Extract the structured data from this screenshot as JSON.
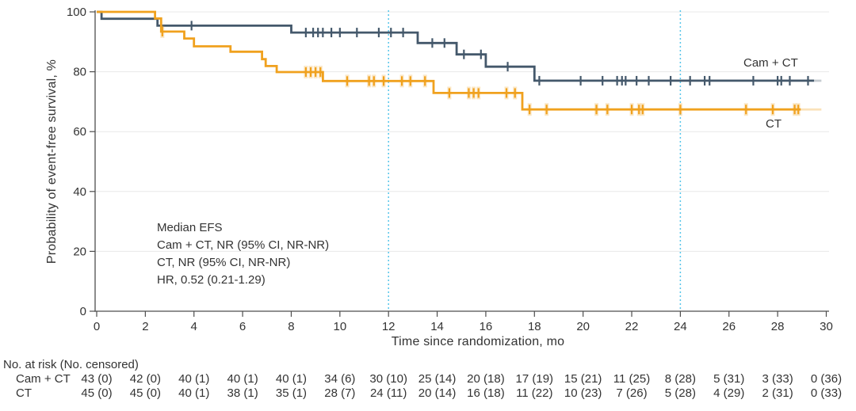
{
  "chart_data": {
    "type": "line",
    "subtype": "kaplan-meier-step",
    "title": "",
    "xlabel": "Time since randomization, mo",
    "ylabel": "Probability of event-free survival, %",
    "xlim": [
      0,
      30
    ],
    "ylim": [
      0,
      100
    ],
    "xticks": [
      0,
      2,
      4,
      6,
      8,
      10,
      12,
      14,
      16,
      18,
      20,
      22,
      24,
      26,
      28,
      30
    ],
    "yticks": [
      0,
      20,
      40,
      60,
      80,
      100
    ],
    "grid": "horizontal-light",
    "legend_position": "curve-end-labels",
    "reference_lines_x": [
      12,
      24
    ],
    "colors": {
      "axis": "#4d4d4d",
      "grid": "#e8e8e8",
      "reference": "#56c5ea",
      "text": "#333333"
    },
    "series": [
      {
        "name": "Cam + CT",
        "color": "#44586b",
        "censor_halo": false,
        "steps": [
          [
            0,
            100
          ],
          [
            0.2,
            97.7
          ],
          [
            2.5,
            95.4
          ],
          [
            8.0,
            93.1
          ],
          [
            13.2,
            89.6
          ],
          [
            14.8,
            85.8
          ],
          [
            16.0,
            81.7
          ],
          [
            18.0,
            77.0
          ]
        ],
        "end": 29.5,
        "end_faint": 29.8,
        "censors": [
          [
            3.9,
            95.4
          ],
          [
            8.6,
            93.1
          ],
          [
            8.9,
            93.1
          ],
          [
            9.1,
            93.1
          ],
          [
            9.3,
            93.1
          ],
          [
            9.65,
            93.1
          ],
          [
            10.0,
            93.1
          ],
          [
            10.7,
            93.1
          ],
          [
            11.6,
            93.1
          ],
          [
            12.1,
            93.1
          ],
          [
            12.6,
            93.1
          ],
          [
            13.8,
            89.6
          ],
          [
            14.3,
            89.6
          ],
          [
            15.1,
            85.8
          ],
          [
            15.8,
            85.8
          ],
          [
            16.9,
            81.7
          ],
          [
            18.2,
            77.0
          ],
          [
            19.9,
            77.0
          ],
          [
            20.8,
            77.0
          ],
          [
            21.4,
            77.0
          ],
          [
            21.6,
            77.0
          ],
          [
            21.75,
            77.0
          ],
          [
            22.2,
            77.0
          ],
          [
            22.7,
            77.0
          ],
          [
            23.6,
            77.0
          ],
          [
            24.4,
            77.0
          ],
          [
            25.0,
            77.0
          ],
          [
            25.2,
            77.0
          ],
          [
            27.0,
            77.0
          ],
          [
            28.0,
            77.0
          ],
          [
            28.15,
            77.0
          ],
          [
            28.5,
            77.0
          ],
          [
            29.25,
            77.0
          ]
        ]
      },
      {
        "name": "CT",
        "color": "#f0a11e",
        "censor_halo": true,
        "steps": [
          [
            0,
            100
          ],
          [
            2.4,
            97.8
          ],
          [
            2.65,
            93.4
          ],
          [
            3.6,
            91.1
          ],
          [
            4.0,
            88.5
          ],
          [
            5.5,
            86.7
          ],
          [
            6.8,
            84.2
          ],
          [
            6.95,
            81.9
          ],
          [
            7.4,
            79.9
          ],
          [
            9.3,
            76.9
          ],
          [
            13.85,
            72.9
          ],
          [
            17.5,
            67.4
          ]
        ],
        "end": 28.95,
        "end_faint": 29.8,
        "censors": [
          [
            2.7,
            93.4
          ],
          [
            8.6,
            79.9
          ],
          [
            8.8,
            79.9
          ],
          [
            9.0,
            79.9
          ],
          [
            9.2,
            79.9
          ],
          [
            10.3,
            76.9
          ],
          [
            11.2,
            76.9
          ],
          [
            11.4,
            76.9
          ],
          [
            11.8,
            76.9
          ],
          [
            12.55,
            76.9
          ],
          [
            12.9,
            76.9
          ],
          [
            13.5,
            76.9
          ],
          [
            14.5,
            72.9
          ],
          [
            15.3,
            72.9
          ],
          [
            15.5,
            72.9
          ],
          [
            15.7,
            72.9
          ],
          [
            16.85,
            72.9
          ],
          [
            17.2,
            72.9
          ],
          [
            17.8,
            67.4
          ],
          [
            18.5,
            67.4
          ],
          [
            20.55,
            67.4
          ],
          [
            21.0,
            67.4
          ],
          [
            22.0,
            67.4
          ],
          [
            22.3,
            67.4
          ],
          [
            22.45,
            67.4
          ],
          [
            24.0,
            67.4
          ],
          [
            26.7,
            67.4
          ],
          [
            27.8,
            67.4
          ],
          [
            28.7,
            67.4
          ],
          [
            28.85,
            67.4
          ]
        ]
      }
    ],
    "annotation": {
      "lines": [
        "Median EFS",
        "Cam + CT, NR (95% CI, NR-NR)",
        "CT, NR (95% CI, NR-NR)",
        "HR, 0.52 (0.21-1.29)"
      ]
    }
  },
  "risk_table": {
    "header": "No. at risk (No. censored)",
    "months": [
      0,
      2,
      4,
      6,
      8,
      10,
      12,
      14,
      16,
      18,
      20,
      22,
      24,
      26,
      28,
      30
    ],
    "rows": [
      {
        "label": "Cam + CT",
        "values": [
          "43 (0)",
          "42 (0)",
          "40 (1)",
          "40 (1)",
          "40 (1)",
          "34 (6)",
          "30 (10)",
          "25 (14)",
          "20 (18)",
          "17 (19)",
          "15 (21)",
          "11 (25)",
          "8 (28)",
          "5 (31)",
          "3 (33)",
          "0 (36)"
        ]
      },
      {
        "label": "CT",
        "values": [
          "45 (0)",
          "45 (0)",
          "40 (1)",
          "38 (1)",
          "35 (1)",
          "28 (7)",
          "24 (11)",
          "20 (14)",
          "16 (18)",
          "11 (22)",
          "10 (23)",
          "7 (26)",
          "5 (28)",
          "4 (29)",
          "2 (31)",
          "0 (33)"
        ]
      }
    ]
  }
}
